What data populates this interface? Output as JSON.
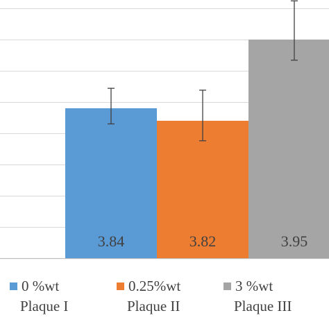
{
  "chart_data": {
    "type": "bar",
    "title": "",
    "xlabel": "",
    "ylabel": "",
    "ylim": [
      3.6,
      4.0
    ],
    "grid": true,
    "legend_position": "bottom",
    "series": [
      {
        "name": "0 %wt",
        "sublabel": "Plaque I",
        "value": 3.84,
        "error_low": 3.815,
        "error_high": 3.872,
        "color": "#5B9BD5",
        "label": "3.84"
      },
      {
        "name": "0.25%wt",
        "sublabel": "Plaque II",
        "value": 3.82,
        "error_low": 3.788,
        "error_high": 3.869,
        "color": "#ED7D31",
        "label": "3.82"
      },
      {
        "name": "3 %wt",
        "sublabel": "Plaque III",
        "value": 3.95,
        "error_low": 3.917,
        "error_high": 4.012,
        "color": "#A5A5A5",
        "label": "3.95"
      }
    ]
  }
}
